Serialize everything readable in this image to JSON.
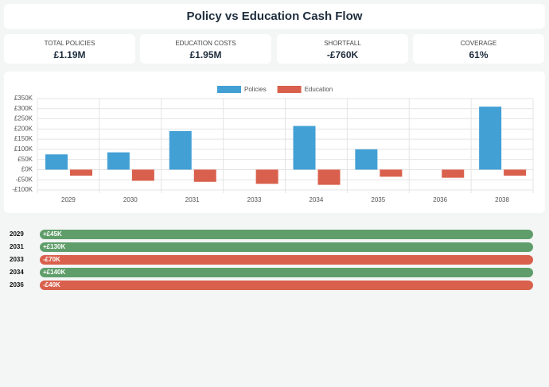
{
  "header": {
    "title": "Policy vs Education Cash Flow"
  },
  "kpis": [
    {
      "label": "TOTAL POLICIES",
      "value": "£1.19M"
    },
    {
      "label": "EDUCATION COSTS",
      "value": "£1.95M"
    },
    {
      "label": "SHORTFALL",
      "value": "-£760K"
    },
    {
      "label": "COVERAGE",
      "value": "61%"
    }
  ],
  "chart_data": {
    "type": "bar",
    "categories": [
      "2029",
      "2030",
      "2031",
      "2033",
      "2034",
      "2035",
      "2036",
      "2038"
    ],
    "series": [
      {
        "name": "Policies",
        "color": "#42a0d5",
        "values": [
          75000,
          85000,
          190000,
          0,
          215000,
          100000,
          0,
          310000
        ]
      },
      {
        "name": "Education",
        "color": "#d9604c",
        "values": [
          -30000,
          -55000,
          -60000,
          -70000,
          -75000,
          -35000,
          -40000,
          -30000
        ]
      }
    ],
    "ylim": [
      -100000,
      350000
    ],
    "yticks": [
      {
        "value": -100000,
        "label": "-£100K"
      },
      {
        "value": -50000,
        "label": "-£50K"
      },
      {
        "value": 0,
        "label": "£0K"
      },
      {
        "value": 50000,
        "label": "£50K"
      },
      {
        "value": 100000,
        "label": "£100K"
      },
      {
        "value": 150000,
        "label": "£150K"
      },
      {
        "value": 200000,
        "label": "£200K"
      },
      {
        "value": 250000,
        "label": "£250K"
      },
      {
        "value": 300000,
        "label": "£300K"
      },
      {
        "value": 350000,
        "label": "£350K"
      }
    ],
    "grid": true,
    "legend": "top"
  },
  "net_list": {
    "years": [
      "2029",
      "2031",
      "2033",
      "2034",
      "2036"
    ],
    "values": [
      45000,
      130000,
      -70000,
      140000,
      -40000
    ],
    "value_labels": [
      "+£45K",
      "+£130K",
      "-£70K",
      "+£140K",
      "-£40K"
    ],
    "positive_color": "#5f9e6a",
    "negative_color": "#d9604c"
  }
}
